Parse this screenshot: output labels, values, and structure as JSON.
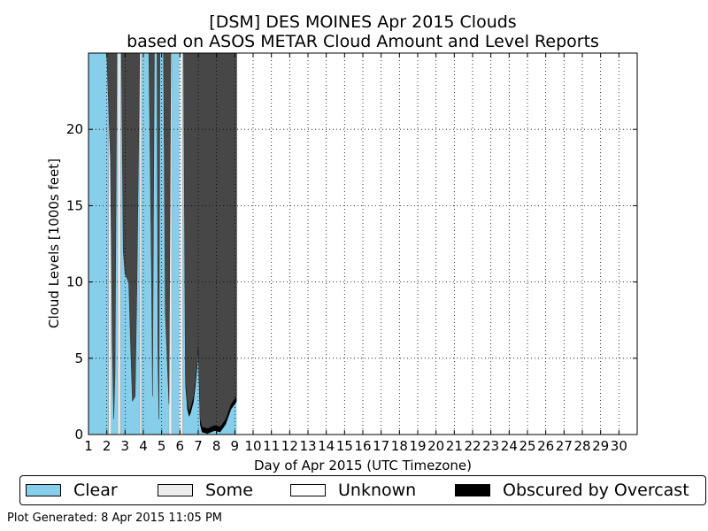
{
  "chart_data": {
    "type": "area",
    "title": "[DSM] DES MOINES Apr 2015 Clouds",
    "subtitle": "based on ASOS METAR Cloud Amount and Level Reports",
    "xlabel": "Day of Apr 2015 (UTC Timezone)",
    "ylabel": "Cloud Levels [1000s feet]",
    "xlim": [
      1,
      31
    ],
    "ylim": [
      0,
      25
    ],
    "x_ticks": [
      "1",
      "2",
      "3",
      "4",
      "5",
      "6",
      "7",
      "8",
      "9",
      "10",
      "11",
      "12",
      "13",
      "14",
      "15",
      "16",
      "17",
      "18",
      "19",
      "20",
      "21",
      "22",
      "23",
      "24",
      "25",
      "26",
      "27",
      "28",
      "29",
      "30"
    ],
    "y_ticks": [
      "0",
      "5",
      "10",
      "15",
      "20"
    ],
    "grid": true,
    "legend_position": "bottom",
    "legend": [
      {
        "label": "Clear",
        "color": "#87ceeb"
      },
      {
        "label": "Some",
        "color": "#ececec"
      },
      {
        "label": "Unknown",
        "color": "#ffffff"
      },
      {
        "label": "Obscured by Overcast",
        "color": "#000000"
      }
    ],
    "overcast_color": "#474747",
    "obscured_color": "#000000",
    "overcast_base": [
      {
        "x": 2.0,
        "y": 25
      },
      {
        "x": 2.2,
        "y": 18
      },
      {
        "x": 2.3,
        "y": 6
      },
      {
        "x": 2.38,
        "y": 1.0
      },
      {
        "x": 2.45,
        "y": 4
      },
      {
        "x": 2.55,
        "y": 25
      },
      {
        "x": 2.8,
        "y": 25
      },
      {
        "x": 2.9,
        "y": 12
      },
      {
        "x": 3.0,
        "y": 10.5
      },
      {
        "x": 3.2,
        "y": 10
      },
      {
        "x": 3.3,
        "y": 6
      },
      {
        "x": 3.4,
        "y": 2.2
      },
      {
        "x": 3.55,
        "y": 2.5
      },
      {
        "x": 3.65,
        "y": 10
      },
      {
        "x": 3.8,
        "y": 25
      },
      {
        "x": 4.3,
        "y": 25
      },
      {
        "x": 4.45,
        "y": 10
      },
      {
        "x": 4.5,
        "y": 2.5
      },
      {
        "x": 4.6,
        "y": 25
      },
      {
        "x": 4.75,
        "y": 25
      },
      {
        "x": 4.8,
        "y": 5
      },
      {
        "x": 4.85,
        "y": 1.0
      },
      {
        "x": 4.9,
        "y": 25
      },
      {
        "x": 5.1,
        "y": 25
      },
      {
        "x": 5.2,
        "y": 8
      },
      {
        "x": 5.4,
        "y": 2
      },
      {
        "x": 5.5,
        "y": 25
      },
      {
        "x": 6.2,
        "y": 25
      },
      {
        "x": 6.25,
        "y": 14
      },
      {
        "x": 6.3,
        "y": 3.5
      },
      {
        "x": 6.4,
        "y": 2.0
      },
      {
        "x": 6.5,
        "y": 1.5
      },
      {
        "x": 6.6,
        "y": 1.8
      },
      {
        "x": 6.75,
        "y": 2.5
      },
      {
        "x": 6.85,
        "y": 3.5
      },
      {
        "x": 6.95,
        "y": 4.8
      },
      {
        "x": 7.0,
        "y": 5.8
      },
      {
        "x": 7.1,
        "y": 1.0
      },
      {
        "x": 7.2,
        "y": 0.5
      },
      {
        "x": 7.5,
        "y": 0.4
      },
      {
        "x": 7.9,
        "y": 0.6
      },
      {
        "x": 8.2,
        "y": 0.5
      },
      {
        "x": 8.5,
        "y": 1.0
      },
      {
        "x": 8.8,
        "y": 2.0
      },
      {
        "x": 9.1,
        "y": 2.5
      }
    ],
    "some_regions": [
      {
        "x0": 2.1,
        "x1": 2.25
      },
      {
        "x0": 2.6,
        "x1": 2.75
      },
      {
        "x0": 3.8,
        "x1": 3.9
      },
      {
        "x0": 5.4,
        "x1": 5.55
      },
      {
        "x0": 5.95,
        "x1": 6.15
      }
    ],
    "data_end_day": 9.1
  },
  "footer": {
    "generated": "Plot Generated: 8 Apr 2015 11:05 PM"
  }
}
